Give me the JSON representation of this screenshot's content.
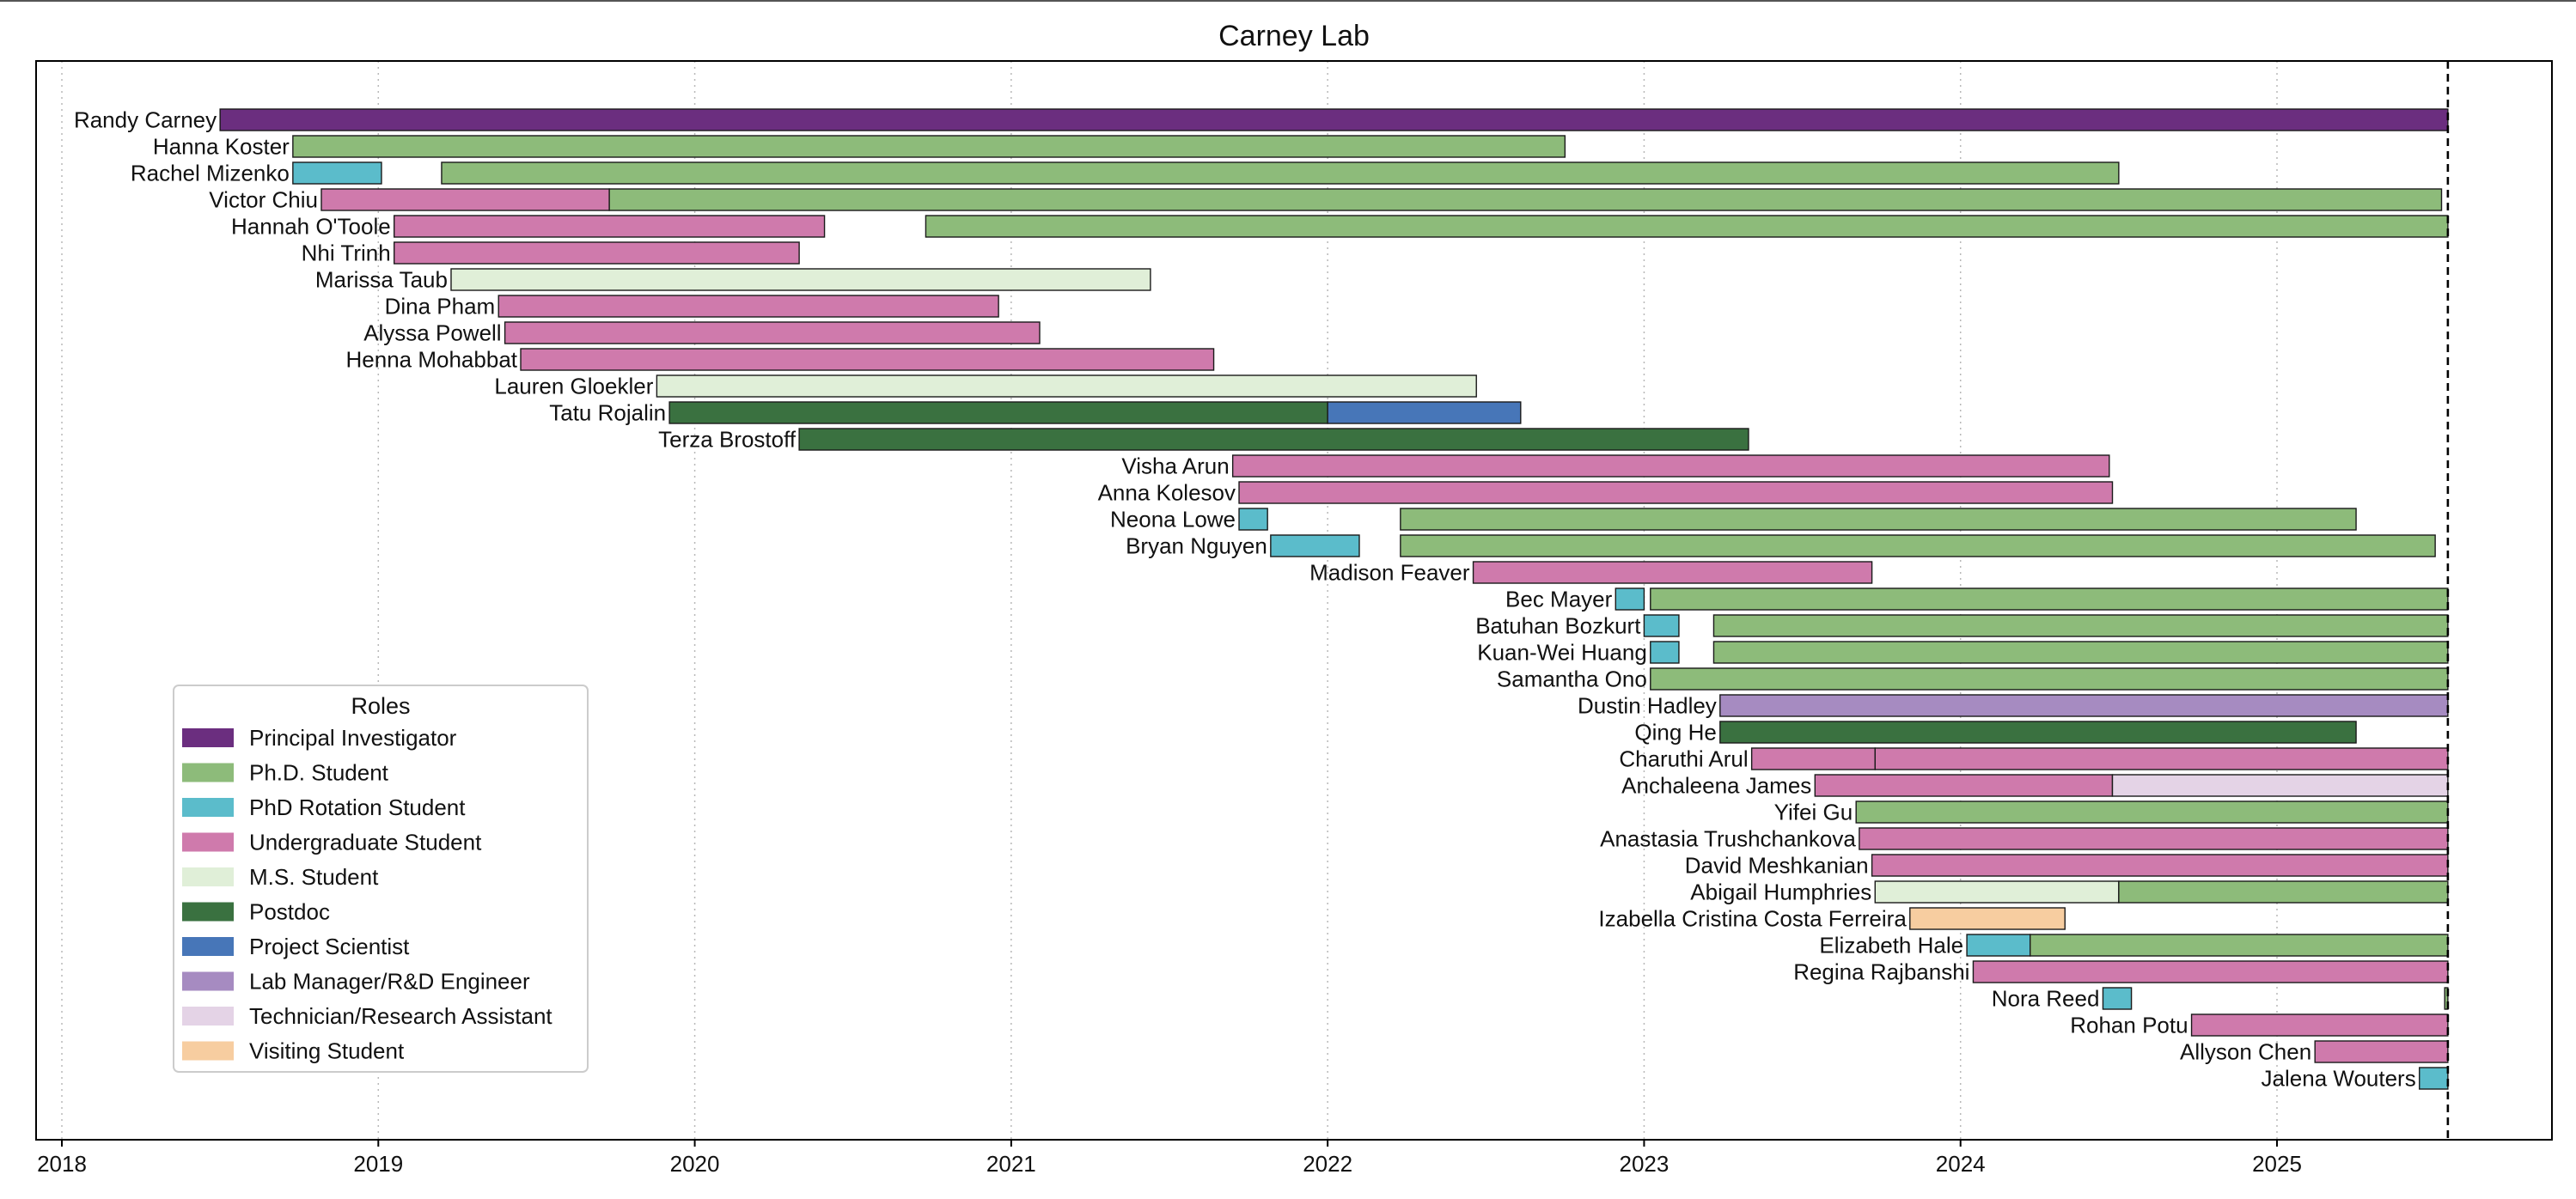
{
  "chart_data": {
    "type": "gantt-timeline",
    "title": "Carney Lab",
    "xlabel": "",
    "ylabel": "",
    "xlim": [
      2017.92,
      2025.85
    ],
    "x_ticks": [
      2018,
      2019,
      2020,
      2021,
      2022,
      2023,
      2024,
      2025
    ],
    "grid": "vertical dotted",
    "today_marker": 2025.54,
    "legend": {
      "title": "Roles",
      "placement": "lower-left",
      "items": [
        {
          "role": "Principal Investigator",
          "color": "#6B2E7F"
        },
        {
          "role": "Ph.D. Student",
          "color": "#8DBB7A"
        },
        {
          "role": "PhD Rotation Student",
          "color": "#5BBCCB"
        },
        {
          "role": "Undergraduate Student",
          "color": "#CF7AAC"
        },
        {
          "role": "M.S. Student",
          "color": "#E0EFD8"
        },
        {
          "role": "Postdoc",
          "color": "#3A7140"
        },
        {
          "role": "Project Scientist",
          "color": "#4776B8"
        },
        {
          "role": "Lab Manager/R&D Engineer",
          "color": "#A68BC1"
        },
        {
          "role": "Technician/Research Assistant",
          "color": "#E4D3E6"
        },
        {
          "role": "Visiting Student",
          "color": "#F7CDA0"
        }
      ]
    },
    "people": [
      {
        "name": "Randy Carney",
        "segments": [
          {
            "role": "Principal Investigator",
            "start": 2018.5,
            "end": 2025.54
          }
        ]
      },
      {
        "name": "Hanna Koster",
        "segments": [
          {
            "role": "Ph.D. Student",
            "start": 2018.73,
            "end": 2022.75
          }
        ]
      },
      {
        "name": "Rachel Mizenko",
        "segments": [
          {
            "role": "PhD Rotation Student",
            "start": 2018.73,
            "end": 2019.01
          },
          {
            "role": "Ph.D. Student",
            "start": 2019.2,
            "end": 2024.5
          }
        ]
      },
      {
        "name": "Victor Chiu",
        "segments": [
          {
            "role": "Undergraduate Student",
            "start": 2018.82,
            "end": 2019.73
          },
          {
            "role": "Ph.D. Student",
            "start": 2019.73,
            "end": 2025.52
          }
        ]
      },
      {
        "name": "Hannah O'Toole",
        "segments": [
          {
            "role": "Undergraduate Student",
            "start": 2019.05,
            "end": 2020.41
          },
          {
            "role": "Ph.D. Student",
            "start": 2020.73,
            "end": 2025.54
          }
        ]
      },
      {
        "name": "Nhi Trinh",
        "segments": [
          {
            "role": "Undergraduate Student",
            "start": 2019.05,
            "end": 2020.33
          }
        ]
      },
      {
        "name": "Marissa Taub",
        "segments": [
          {
            "role": "M.S. Student",
            "start": 2019.23,
            "end": 2021.44
          }
        ]
      },
      {
        "name": "Dina Pham",
        "segments": [
          {
            "role": "Undergraduate Student",
            "start": 2019.38,
            "end": 2020.96
          }
        ]
      },
      {
        "name": "Alyssa Powell",
        "segments": [
          {
            "role": "Undergraduate Student",
            "start": 2019.4,
            "end": 2021.09
          }
        ]
      },
      {
        "name": "Henna Mohabbat",
        "segments": [
          {
            "role": "Undergraduate Student",
            "start": 2019.45,
            "end": 2021.64
          }
        ]
      },
      {
        "name": "Lauren Gloekler",
        "segments": [
          {
            "role": "M.S. Student",
            "start": 2019.88,
            "end": 2022.47
          }
        ]
      },
      {
        "name": "Tatu Rojalin",
        "segments": [
          {
            "role": "Postdoc",
            "start": 2019.92,
            "end": 2022.0
          },
          {
            "role": "Project Scientist",
            "start": 2022.0,
            "end": 2022.61
          }
        ]
      },
      {
        "name": "Terza Brostoff",
        "segments": [
          {
            "role": "Postdoc",
            "start": 2020.33,
            "end": 2023.33
          }
        ]
      },
      {
        "name": "Visha Arun",
        "segments": [
          {
            "role": "Undergraduate Student",
            "start": 2021.7,
            "end": 2024.47
          }
        ]
      },
      {
        "name": "Anna Kolesov",
        "segments": [
          {
            "role": "Undergraduate Student",
            "start": 2021.72,
            "end": 2024.48
          }
        ]
      },
      {
        "name": "Neona Lowe",
        "segments": [
          {
            "role": "PhD Rotation Student",
            "start": 2021.72,
            "end": 2021.81
          },
          {
            "role": "Ph.D. Student",
            "start": 2022.23,
            "end": 2025.25
          }
        ]
      },
      {
        "name": "Bryan Nguyen",
        "segments": [
          {
            "role": "PhD Rotation Student",
            "start": 2021.82,
            "end": 2022.1
          },
          {
            "role": "Ph.D. Student",
            "start": 2022.23,
            "end": 2025.5
          }
        ]
      },
      {
        "name": "Madison Feaver",
        "segments": [
          {
            "role": "Undergraduate Student",
            "start": 2022.46,
            "end": 2023.72
          }
        ]
      },
      {
        "name": "Bec Mayer",
        "segments": [
          {
            "role": "PhD Rotation Student",
            "start": 2022.91,
            "end": 2023.0
          },
          {
            "role": "Ph.D. Student",
            "start": 2023.02,
            "end": 2025.54
          }
        ]
      },
      {
        "name": "Batuhan Bozkurt",
        "segments": [
          {
            "role": "PhD Rotation Student",
            "start": 2023.0,
            "end": 2023.11
          },
          {
            "role": "Ph.D. Student",
            "start": 2023.22,
            "end": 2025.54
          }
        ]
      },
      {
        "name": "Kuan-Wei Huang",
        "segments": [
          {
            "role": "PhD Rotation Student",
            "start": 2023.02,
            "end": 2023.11
          },
          {
            "role": "Ph.D. Student",
            "start": 2023.22,
            "end": 2025.54
          }
        ]
      },
      {
        "name": "Samantha Ono",
        "segments": [
          {
            "role": "Ph.D. Student",
            "start": 2023.02,
            "end": 2025.54
          }
        ]
      },
      {
        "name": "Dustin Hadley",
        "segments": [
          {
            "role": "Lab Manager/R&D Engineer",
            "start": 2023.24,
            "end": 2025.54
          }
        ]
      },
      {
        "name": "Qing He",
        "segments": [
          {
            "role": "Postdoc",
            "start": 2023.24,
            "end": 2025.25
          }
        ]
      },
      {
        "name": "Charuthi Arul",
        "segments": [
          {
            "role": "Undergraduate Student",
            "start": 2023.34,
            "end": 2023.73
          },
          {
            "role": "Undergraduate Student",
            "start": 2023.73,
            "end": 2025.54
          }
        ]
      },
      {
        "name": "Anchaleena James",
        "segments": [
          {
            "role": "Undergraduate Student",
            "start": 2023.54,
            "end": 2024.48
          },
          {
            "role": "Technician/Research Assistant",
            "start": 2024.48,
            "end": 2025.54
          }
        ]
      },
      {
        "name": "Yifei Gu",
        "segments": [
          {
            "role": "Ph.D. Student",
            "start": 2023.67,
            "end": 2025.54
          }
        ]
      },
      {
        "name": "Anastasia Trushchankova",
        "segments": [
          {
            "role": "Undergraduate Student",
            "start": 2023.68,
            "end": 2025.54
          }
        ]
      },
      {
        "name": "David Meshkanian",
        "segments": [
          {
            "role": "Undergraduate Student",
            "start": 2023.72,
            "end": 2025.54
          }
        ]
      },
      {
        "name": "Abigail Humphries",
        "segments": [
          {
            "role": "M.S. Student",
            "start": 2023.73,
            "end": 2024.5
          },
          {
            "role": "Ph.D. Student",
            "start": 2024.5,
            "end": 2025.54
          }
        ]
      },
      {
        "name": "Izabella Cristina Costa Ferreira",
        "segments": [
          {
            "role": "Visiting Student",
            "start": 2023.84,
            "end": 2024.33
          }
        ]
      },
      {
        "name": "Elizabeth Hale",
        "segments": [
          {
            "role": "PhD Rotation Student",
            "start": 2024.02,
            "end": 2024.22
          },
          {
            "role": "Ph.D. Student",
            "start": 2024.22,
            "end": 2025.54
          }
        ]
      },
      {
        "name": "Regina Rajbanshi",
        "segments": [
          {
            "role": "Undergraduate Student",
            "start": 2024.04,
            "end": 2025.54
          }
        ]
      },
      {
        "name": "Nora Reed",
        "segments": [
          {
            "role": "PhD Rotation Student",
            "start": 2024.45,
            "end": 2024.54
          },
          {
            "role": "Ph.D. Student",
            "start": 2025.53,
            "end": 2025.54
          }
        ]
      },
      {
        "name": "Rohan Potu",
        "segments": [
          {
            "role": "Undergraduate Student",
            "start": 2024.73,
            "end": 2025.54
          }
        ]
      },
      {
        "name": "Allyson Chen",
        "segments": [
          {
            "role": "Undergraduate Student",
            "start": 2025.12,
            "end": 2025.54
          }
        ]
      },
      {
        "name": "Jalena Wouters",
        "segments": [
          {
            "role": "PhD Rotation Student",
            "start": 2025.45,
            "end": 2025.54
          }
        ]
      }
    ]
  }
}
